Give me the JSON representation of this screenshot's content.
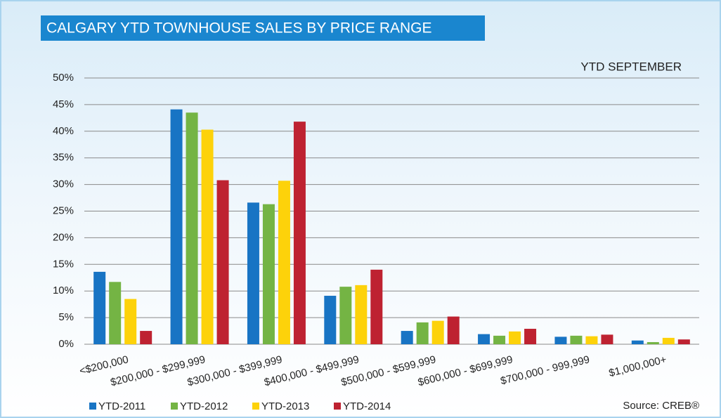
{
  "chart_data": {
    "type": "bar",
    "title": "CALGARY YTD TOWNHOUSE SALES BY PRICE RANGE",
    "subtitle": "YTD SEPTEMBER",
    "source": "Source: CREB®",
    "categories": [
      "<$200,000",
      "$200,000 - $299,999",
      "$300,000 - $399,999",
      "$400,000 - $499,999",
      "$500,000 - $599,999",
      "$600,000 - $699,999",
      "$700,000 - 999,999",
      "$1,000,000+"
    ],
    "series": [
      {
        "name": "YTD-2011",
        "color": "#1874c4",
        "values": [
          13.6,
          44.1,
          26.6,
          9.1,
          2.5,
          1.9,
          1.4,
          0.7
        ]
      },
      {
        "name": "YTD-2012",
        "color": "#74b444",
        "values": [
          11.7,
          43.5,
          26.3,
          10.8,
          4.1,
          1.6,
          1.6,
          0.4
        ]
      },
      {
        "name": "YTD-2013",
        "color": "#fdd20a",
        "values": [
          8.5,
          40.3,
          30.7,
          11.1,
          4.4,
          2.4,
          1.5,
          1.2
        ]
      },
      {
        "name": "YTD-2014",
        "color": "#be2231",
        "values": [
          2.5,
          30.8,
          41.8,
          14.0,
          5.2,
          2.9,
          1.8,
          0.9
        ]
      }
    ],
    "ylim": [
      0,
      50
    ],
    "yticks": [
      {
        "value": 0,
        "label": "0%"
      },
      {
        "value": 5,
        "label": "5%"
      },
      {
        "value": 10,
        "label": "10%"
      },
      {
        "value": 15,
        "label": "15%"
      },
      {
        "value": 20,
        "label": "20%"
      },
      {
        "value": 25,
        "label": "25%"
      },
      {
        "value": 30,
        "label": "30%"
      },
      {
        "value": 35,
        "label": "35%"
      },
      {
        "value": 40,
        "label": "40%"
      },
      {
        "value": 45,
        "label": "45%"
      },
      {
        "value": 50,
        "label": "50%"
      }
    ],
    "grid": true
  }
}
